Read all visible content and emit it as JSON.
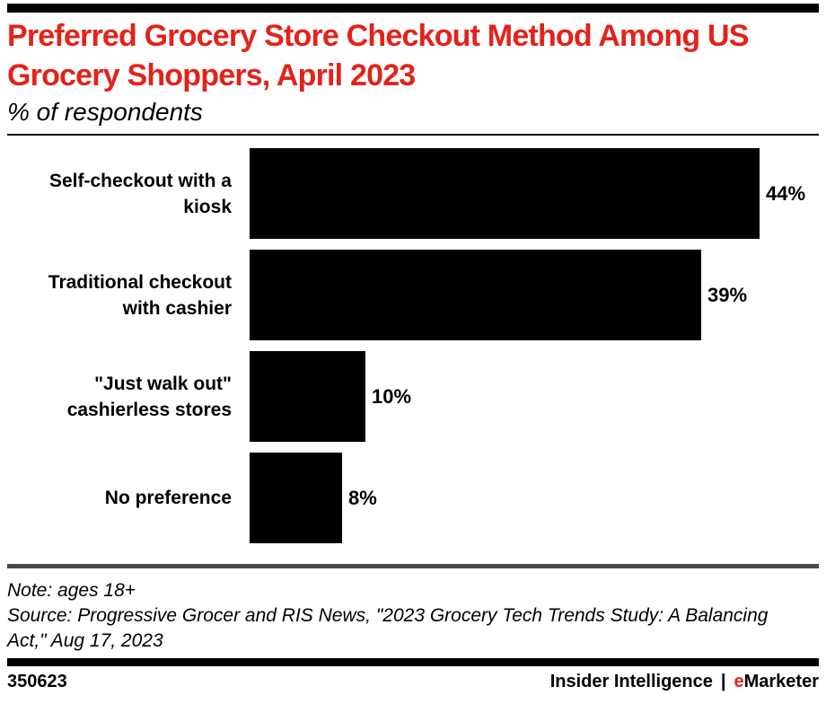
{
  "accent_color": "#e2231a",
  "bar_color": "#000000",
  "header": {
    "title_line1": "Preferred Grocery Store Checkout Method Among US",
    "title_line2": "Grocery Shoppers, April 2023",
    "subtitle": "% of respondents"
  },
  "chart_data": {
    "type": "bar",
    "orientation": "horizontal",
    "title": "Preferred Grocery Store Checkout Method Among US Grocery Shoppers, April 2023",
    "subtitle": "% of respondents",
    "categories": [
      "Self-checkout with a kiosk",
      "Traditional checkout with cashier",
      "\"Just walk out\" cashierless stores",
      "No preference"
    ],
    "values": [
      44,
      39,
      10,
      8
    ],
    "value_labels": [
      "44%",
      "39%",
      "10%",
      "8%"
    ],
    "xlim": [
      0,
      44
    ],
    "bar_color": "#000000",
    "grid": false,
    "legend": false
  },
  "footer": {
    "note": "Note: ages 18+",
    "source": "Source: Progressive Grocer and RIS News, \"2023 Grocery Tech Trends Study: A Balancing Act,\" Aug 17, 2023",
    "chart_id": "350623",
    "brand_left": "Insider Intelligence",
    "brand_divider": "|",
    "brand_e": "e",
    "brand_rest": "Marketer"
  }
}
